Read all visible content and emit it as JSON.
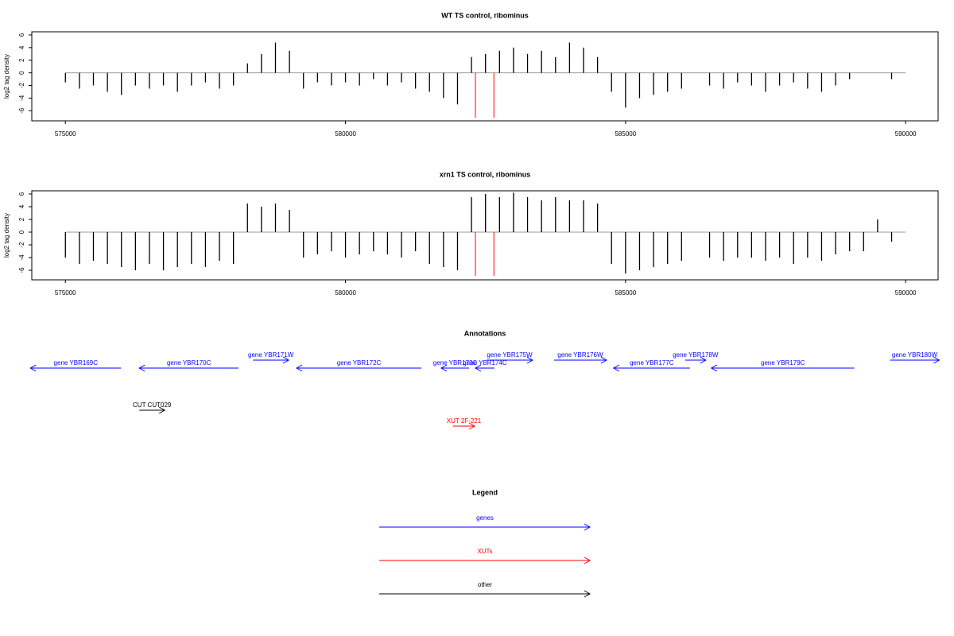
{
  "chart_data": [
    {
      "type": "bar",
      "title": "WT TS control, ribominus",
      "ylabel": "log2 tag density",
      "color": "#000000",
      "x": [
        575000,
        575250,
        575500,
        575750,
        576000,
        576250,
        576500,
        576750,
        577000,
        577250,
        577500,
        577750,
        578000,
        578250,
        578500,
        578750,
        579000,
        579250,
        579500,
        579750,
        580000,
        580250,
        580500,
        580750,
        581000,
        581250,
        581500,
        581750,
        582000,
        582250,
        582500,
        582750,
        583000,
        583250,
        583500,
        583750,
        584000,
        584250,
        584500,
        584750,
        585000,
        585250,
        585500,
        585750,
        586000,
        586250,
        586500,
        586750,
        587000,
        587250,
        587500,
        587750,
        588000,
        588250,
        588500,
        588750,
        589000,
        589250,
        589500,
        589750
      ],
      "values": [
        -1.5,
        -2.5,
        -2,
        -3,
        -3.5,
        -2,
        -2.5,
        -2,
        -3,
        -2,
        -1.5,
        -2.5,
        -2,
        1.5,
        3,
        4.8,
        3.5,
        -2.5,
        -1.5,
        -2,
        -1.5,
        -2,
        -1,
        -2,
        -1.5,
        -2.5,
        -3,
        -4,
        -5,
        2.5,
        3,
        3.5,
        4,
        3,
        3.5,
        2.5,
        4.8,
        4,
        2.5,
        -3,
        -5.5,
        -4,
        -3.5,
        -3,
        -2.5,
        null,
        -2,
        -2.5,
        -1.5,
        -2,
        -3,
        -2,
        -1.5,
        -2.5,
        -3,
        -2,
        -1,
        null,
        null,
        -1
      ],
      "marker_x": [
        582320,
        582650
      ],
      "marker_values": [
        -7.1,
        -7.1
      ],
      "marker_color": "#ff0000",
      "xlim": [
        574400,
        590580
      ],
      "ylim": [
        -7.6,
        6.5
      ],
      "xticks": [
        575000,
        580000,
        585000,
        590000
      ],
      "yticks": [
        -6,
        -4,
        -2,
        0,
        2,
        4,
        6
      ]
    },
    {
      "type": "bar",
      "title": "xrn1 TS control, ribominus",
      "ylabel": "log2 tag density",
      "color": "#000000",
      "x": [
        575000,
        575250,
        575500,
        575750,
        576000,
        576250,
        576500,
        576750,
        577000,
        577250,
        577500,
        577750,
        578000,
        578250,
        578500,
        578750,
        579000,
        579250,
        579500,
        579750,
        580000,
        580250,
        580500,
        580750,
        581000,
        581250,
        581500,
        581750,
        582000,
        582250,
        582500,
        582750,
        583000,
        583250,
        583500,
        583750,
        584000,
        584250,
        584500,
        584750,
        585000,
        585250,
        585500,
        585750,
        586000,
        586250,
        586500,
        586750,
        587000,
        587250,
        587500,
        587750,
        588000,
        588250,
        588500,
        588750,
        589000,
        589250,
        589500,
        589750
      ],
      "values": [
        -4,
        -5,
        -4.5,
        -5,
        -5.5,
        -6,
        -5,
        -6,
        -5.5,
        -5,
        -5.5,
        -4.5,
        -5,
        4.5,
        4,
        4.5,
        3.5,
        -4,
        -3.5,
        -3,
        -4,
        -3.5,
        -3,
        -3.5,
        -4,
        -3,
        -5,
        -5.5,
        -6,
        5.5,
        6,
        5.5,
        6.2,
        5.5,
        5,
        5.5,
        5,
        5,
        4.5,
        -5,
        -6.5,
        -6,
        -5.5,
        -5,
        -4.5,
        null,
        -4,
        -4.5,
        -4,
        -4,
        -4.5,
        -4,
        -5,
        -4,
        -4.5,
        -3.5,
        -3,
        -3,
        2,
        -1.5
      ],
      "marker_x": [
        582320,
        582650
      ],
      "marker_values": [
        -6.9,
        -6.9
      ],
      "marker_color": "#ff0000",
      "xlim": [
        574400,
        590580
      ],
      "ylim": [
        -7.5,
        6.5
      ],
      "xticks": [
        575000,
        580000,
        585000,
        590000
      ],
      "yticks": [
        -6,
        -4,
        -2,
        0,
        2,
        4,
        6
      ]
    }
  ],
  "annotations": {
    "title": "Annotations",
    "items": [
      {
        "label": "gene YBR169C",
        "kind": "gene",
        "strand": "-",
        "start": 574376,
        "end": 575993,
        "color": "#0000ff"
      },
      {
        "label": "gene YBR170C",
        "kind": "gene",
        "strand": "-",
        "start": 576319,
        "end": 578092,
        "color": "#0000ff"
      },
      {
        "label": "gene YBR171W",
        "kind": "gene",
        "strand": "+",
        "start": 578348,
        "end": 578986,
        "color": "#0000ff"
      },
      {
        "label": "gene YBR172C",
        "kind": "gene",
        "strand": "-",
        "start": 579128,
        "end": 581355,
        "color": "#0000ff"
      },
      {
        "label": "gene YBR173C",
        "kind": "gene",
        "strand": "-",
        "start": 581709,
        "end": 582206,
        "color": "#0000ff"
      },
      {
        "label": "gene YBR174C",
        "kind": "gene",
        "strand": "-",
        "start": 582319,
        "end": 582660,
        "color": "#0000ff"
      },
      {
        "label": "gene YBR175W",
        "kind": "gene",
        "strand": "+",
        "start": 582518,
        "end": 583340,
        "color": "#0000ff"
      },
      {
        "label": "gene YBR176W",
        "kind": "gene",
        "strand": "+",
        "start": 583723,
        "end": 584660,
        "color": "#0000ff"
      },
      {
        "label": "gene YBR177C",
        "kind": "gene",
        "strand": "-",
        "start": 584787,
        "end": 586149,
        "color": "#0000ff"
      },
      {
        "label": "gene YBR178W",
        "kind": "gene",
        "strand": "+",
        "start": 586064,
        "end": 586433,
        "color": "#0000ff"
      },
      {
        "label": "gene YBR179C",
        "kind": "gene",
        "strand": "-",
        "start": 586532,
        "end": 589085,
        "color": "#0000ff"
      },
      {
        "label": "gene YBR180W",
        "kind": "gene",
        "strand": "+",
        "start": 589723,
        "end": 590600,
        "color": "#0000ff"
      },
      {
        "label": "CUT CUT029",
        "kind": "other",
        "strand": "+",
        "start": 576319,
        "end": 576773,
        "color": "#000000"
      },
      {
        "label": "XUT 2F-221",
        "kind": "XUT",
        "strand": "+",
        "start": 581922,
        "end": 582305,
        "color": "#ff0000"
      }
    ]
  },
  "legend": {
    "title": "Legend",
    "items": [
      {
        "label": "genes",
        "color": "#0000ff"
      },
      {
        "label": "XUTs",
        "color": "#ff0000"
      },
      {
        "label": "other",
        "color": "#000000"
      }
    ]
  }
}
